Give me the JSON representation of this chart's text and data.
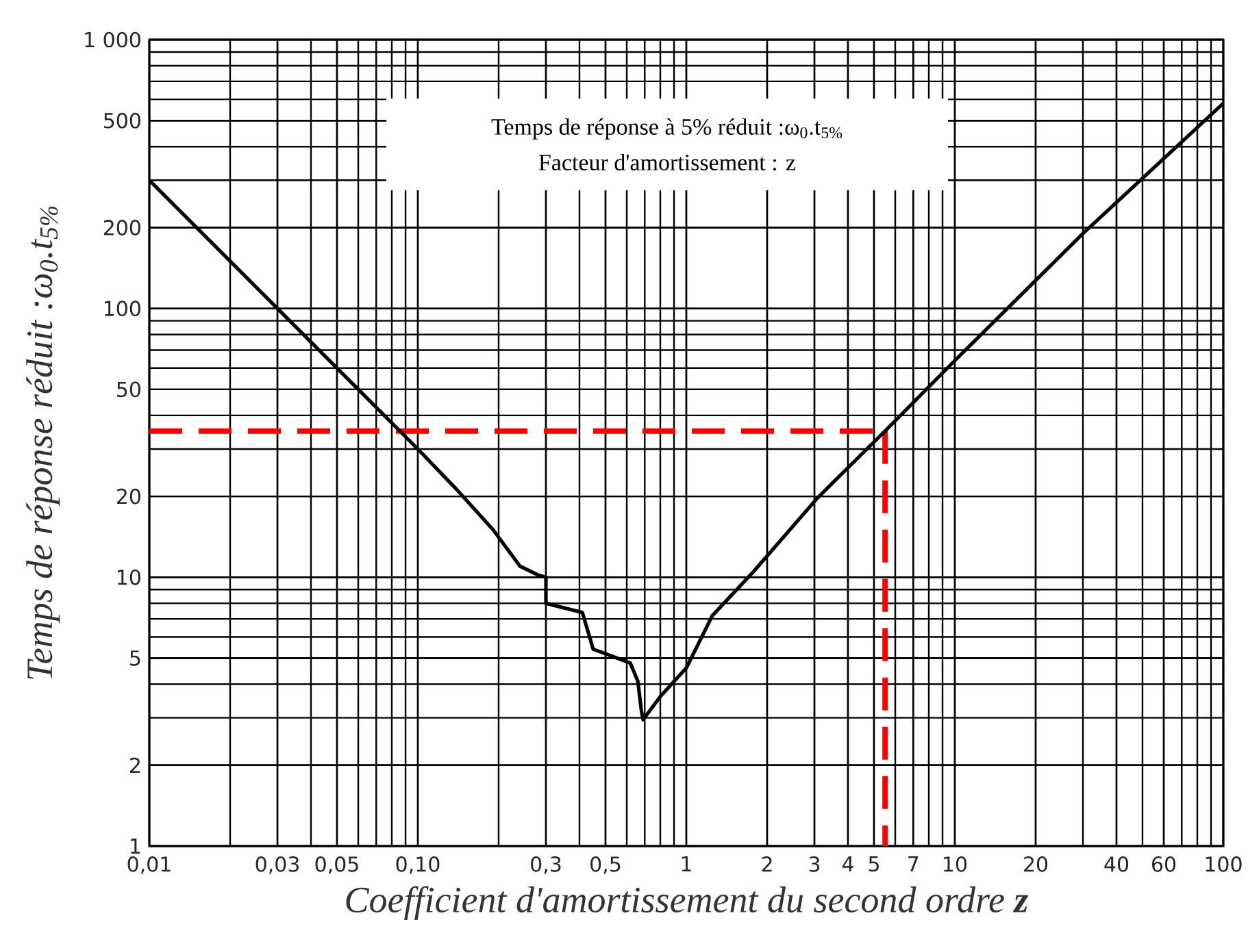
{
  "chart_data": {
    "type": "line",
    "xlabel": "Coefficient d'amortissement du second ordre **z**",
    "ylabel": "Temps de réponse réduit  :ω$_{0}$.t$_{5%}$",
    "annotations": [
      "Temps de réponse à 5% réduit :ω$_{0}$.t$_{5%}$",
      "Facteur d'amortissement  : z"
    ],
    "log": "xy",
    "color": "#000000",
    "x": [
      0.01,
      0.03,
      0.1,
      0.139,
      0.191,
      0.24,
      0.28,
      0.3,
      0.3,
      0.41,
      0.45,
      0.618,
      0.66,
      0.68,
      0.69,
      0.8,
      1,
      1.25,
      1.78,
      3.09,
      5.5,
      10,
      30,
      100
    ],
    "values": [
      300,
      100,
      30,
      21.3,
      15,
      11,
      10.2,
      10,
      8,
      7.4,
      5.4,
      4.8,
      4.1,
      3.2,
      2.95,
      3.6,
      4.6,
      7.2,
      10.5,
      19.8,
      35,
      64,
      190,
      580
    ],
    "xlim": [
      0.01,
      100
    ],
    "ylim": [
      1,
      1000
    ],
    "xticks": [
      {
        "value": 0.01,
        "label": "0,01"
      },
      {
        "value": 0.03,
        "label": "0,03"
      },
      {
        "value": 0.05,
        "label": "0,05"
      },
      {
        "value": 0.1,
        "label": "0,10"
      },
      {
        "value": 0.3,
        "label": "0,3"
      },
      {
        "value": 0.5,
        "label": "0,5"
      },
      1,
      2,
      3,
      4,
      5,
      7,
      10,
      20,
      40,
      60,
      100
    ],
    "yticks": [
      1,
      2,
      5,
      10,
      20,
      50,
      100,
      200,
      500,
      {
        "value": 1000,
        "label": "1 000"
      }
    ],
    "grid": true,
    "ref_lines": [
      {
        "axis": "y",
        "value": 35,
        "color": "#ff0000",
        "line_style": "dashed"
      },
      {
        "axis": "x",
        "value": 5.5,
        "color": "#ff0000",
        "line_style": "dashed"
      }
    ]
  }
}
